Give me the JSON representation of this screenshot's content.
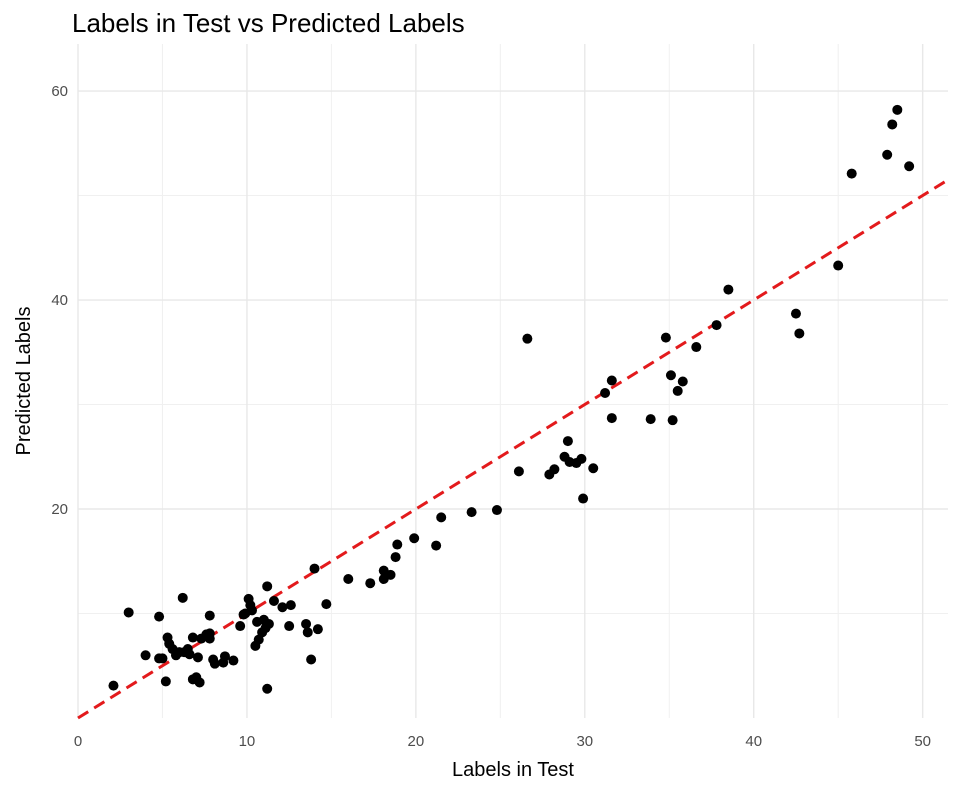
{
  "chart_data": {
    "type": "scatter",
    "title": "Labels in Test vs Predicted Labels",
    "xlabel": "Labels in Test",
    "ylabel": "Predicted Labels",
    "xlim": [
      0,
      51.5
    ],
    "ylim": [
      0,
      64.5
    ],
    "xticks": [
      0,
      10,
      20,
      30,
      40,
      50
    ],
    "yticks": [
      20,
      40,
      60
    ],
    "grid": true,
    "legend": "none",
    "point_color": "#000000",
    "reference_line": {
      "style": "dashed",
      "color": "#e31a1c",
      "slope": 1,
      "intercept": 0
    },
    "points": [
      {
        "x": 2.1,
        "y": 3.1
      },
      {
        "x": 3.0,
        "y": 10.1
      },
      {
        "x": 4.0,
        "y": 6.0
      },
      {
        "x": 4.8,
        "y": 9.7
      },
      {
        "x": 4.8,
        "y": 5.7
      },
      {
        "x": 5.0,
        "y": 5.7
      },
      {
        "x": 5.2,
        "y": 3.5
      },
      {
        "x": 5.3,
        "y": 7.7
      },
      {
        "x": 5.4,
        "y": 7.1
      },
      {
        "x": 5.6,
        "y": 6.6
      },
      {
        "x": 5.8,
        "y": 6.0
      },
      {
        "x": 6.0,
        "y": 6.3
      },
      {
        "x": 6.2,
        "y": 11.5
      },
      {
        "x": 6.3,
        "y": 6.3
      },
      {
        "x": 6.5,
        "y": 6.6
      },
      {
        "x": 6.6,
        "y": 6.1
      },
      {
        "x": 6.8,
        "y": 7.7
      },
      {
        "x": 6.8,
        "y": 3.7
      },
      {
        "x": 7.0,
        "y": 3.9
      },
      {
        "x": 7.1,
        "y": 5.8
      },
      {
        "x": 7.2,
        "y": 3.4
      },
      {
        "x": 7.3,
        "y": 7.6
      },
      {
        "x": 7.6,
        "y": 8.0
      },
      {
        "x": 7.8,
        "y": 8.1
      },
      {
        "x": 7.8,
        "y": 7.6
      },
      {
        "x": 7.8,
        "y": 9.8
      },
      {
        "x": 8.0,
        "y": 5.6
      },
      {
        "x": 8.1,
        "y": 5.2
      },
      {
        "x": 8.6,
        "y": 5.3
      },
      {
        "x": 8.7,
        "y": 5.9
      },
      {
        "x": 9.2,
        "y": 5.5
      },
      {
        "x": 9.6,
        "y": 8.8
      },
      {
        "x": 9.8,
        "y": 9.9
      },
      {
        "x": 9.9,
        "y": 10.0
      },
      {
        "x": 10.1,
        "y": 11.4
      },
      {
        "x": 10.2,
        "y": 10.8
      },
      {
        "x": 10.3,
        "y": 10.3
      },
      {
        "x": 10.5,
        "y": 6.9
      },
      {
        "x": 10.6,
        "y": 9.2
      },
      {
        "x": 10.7,
        "y": 7.5
      },
      {
        "x": 10.9,
        "y": 8.2
      },
      {
        "x": 11.0,
        "y": 9.4
      },
      {
        "x": 11.1,
        "y": 8.6
      },
      {
        "x": 11.2,
        "y": 12.6
      },
      {
        "x": 11.2,
        "y": 2.8
      },
      {
        "x": 11.3,
        "y": 9.0
      },
      {
        "x": 11.6,
        "y": 11.2
      },
      {
        "x": 12.1,
        "y": 10.6
      },
      {
        "x": 12.5,
        "y": 8.8
      },
      {
        "x": 12.6,
        "y": 10.8
      },
      {
        "x": 13.5,
        "y": 9.0
      },
      {
        "x": 13.6,
        "y": 8.2
      },
      {
        "x": 13.8,
        "y": 5.6
      },
      {
        "x": 14.0,
        "y": 14.3
      },
      {
        "x": 14.2,
        "y": 8.5
      },
      {
        "x": 14.7,
        "y": 10.9
      },
      {
        "x": 16.0,
        "y": 13.3
      },
      {
        "x": 17.3,
        "y": 12.9
      },
      {
        "x": 18.1,
        "y": 14.1
      },
      {
        "x": 18.1,
        "y": 13.3
      },
      {
        "x": 18.5,
        "y": 13.7
      },
      {
        "x": 18.8,
        "y": 15.4
      },
      {
        "x": 18.9,
        "y": 16.6
      },
      {
        "x": 19.9,
        "y": 17.2
      },
      {
        "x": 21.2,
        "y": 16.5
      },
      {
        "x": 21.5,
        "y": 19.2
      },
      {
        "x": 23.3,
        "y": 19.7
      },
      {
        "x": 24.8,
        "y": 19.9
      },
      {
        "x": 26.1,
        "y": 23.6
      },
      {
        "x": 26.6,
        "y": 36.3
      },
      {
        "x": 27.9,
        "y": 23.3
      },
      {
        "x": 28.2,
        "y": 23.8
      },
      {
        "x": 28.8,
        "y": 25.0
      },
      {
        "x": 29.0,
        "y": 26.5
      },
      {
        "x": 29.1,
        "y": 24.5
      },
      {
        "x": 29.5,
        "y": 24.4
      },
      {
        "x": 29.8,
        "y": 24.8
      },
      {
        "x": 29.9,
        "y": 21.0
      },
      {
        "x": 30.5,
        "y": 23.9
      },
      {
        "x": 31.2,
        "y": 31.1
      },
      {
        "x": 31.6,
        "y": 32.3
      },
      {
        "x": 31.6,
        "y": 28.7
      },
      {
        "x": 33.9,
        "y": 28.6
      },
      {
        "x": 34.8,
        "y": 36.4
      },
      {
        "x": 35.1,
        "y": 32.8
      },
      {
        "x": 35.2,
        "y": 28.5
      },
      {
        "x": 35.5,
        "y": 31.3
      },
      {
        "x": 35.8,
        "y": 32.2
      },
      {
        "x": 36.6,
        "y": 35.5
      },
      {
        "x": 37.8,
        "y": 37.6
      },
      {
        "x": 38.5,
        "y": 41.0
      },
      {
        "x": 42.5,
        "y": 38.7
      },
      {
        "x": 42.7,
        "y": 36.8
      },
      {
        "x": 45.0,
        "y": 43.3
      },
      {
        "x": 45.8,
        "y": 52.1
      },
      {
        "x": 47.9,
        "y": 53.9
      },
      {
        "x": 48.2,
        "y": 56.8
      },
      {
        "x": 48.5,
        "y": 58.2
      },
      {
        "x": 49.2,
        "y": 52.8
      }
    ]
  }
}
